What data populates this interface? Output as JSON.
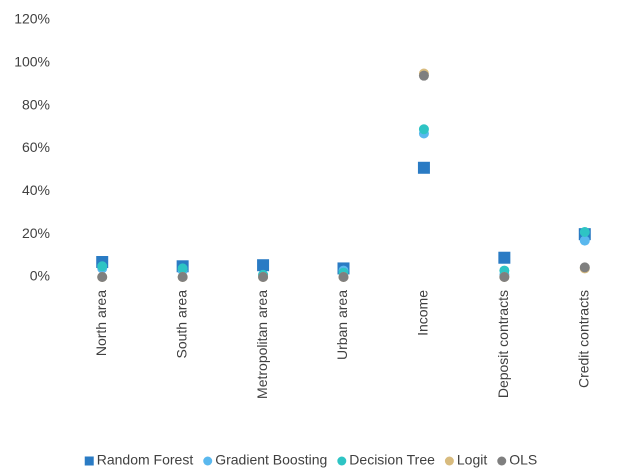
{
  "chart_data": {
    "type": "scatter",
    "categories": [
      "North area",
      "South area",
      "Metropolitan area",
      "Urban area",
      "Income",
      "Deposit contracts",
      "Credit contracts"
    ],
    "series": [
      {
        "name": "Random Forest",
        "color": "#2a7bc4",
        "marker": "square",
        "values": [
          7,
          5,
          5.5,
          4,
          51,
          9,
          20
        ]
      },
      {
        "name": "Gradient Boosting",
        "color": "#5ab8ee",
        "marker": "circle",
        "values": [
          4,
          3,
          1,
          3,
          67,
          1,
          17
        ]
      },
      {
        "name": "Decision Tree",
        "color": "#2ec4c4",
        "marker": "circle",
        "values": [
          5,
          4,
          1,
          2,
          69,
          3,
          21
        ]
      },
      {
        "name": "Logit",
        "color": "#d8bb7e",
        "marker": "circle",
        "values": [
          0,
          0,
          0,
          0,
          95,
          0,
          4
        ]
      },
      {
        "name": "OLS",
        "color": "#7f7f7f",
        "marker": "circle",
        "values": [
          0,
          0,
          0,
          0,
          94,
          0,
          4.5
        ]
      }
    ],
    "ylim": [
      0,
      120
    ],
    "yticks": [
      {
        "value": 0,
        "label": "0%"
      },
      {
        "value": 20,
        "label": "20%"
      },
      {
        "value": 40,
        "label": "40%"
      },
      {
        "value": 60,
        "label": "60%"
      },
      {
        "value": 80,
        "label": "80%"
      },
      {
        "value": 100,
        "label": "100%"
      },
      {
        "value": 120,
        "label": "120%"
      }
    ],
    "grid": false,
    "legend": "bottom"
  }
}
